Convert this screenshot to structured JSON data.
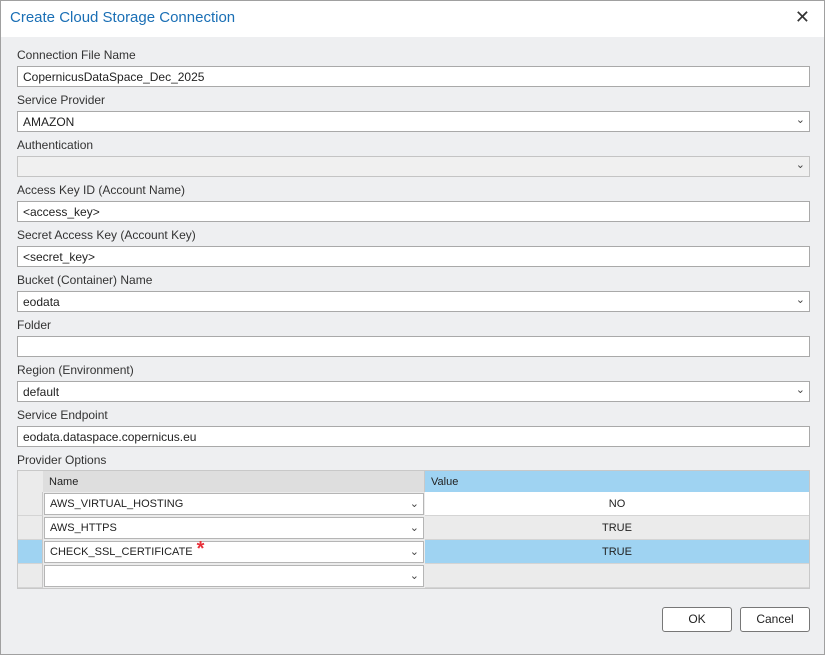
{
  "dialog": {
    "title": "Create Cloud Storage Connection"
  },
  "fields": [
    {
      "label": "Connection File Name",
      "value": "CopernicusDataSpace_Dec_2025",
      "type": "text"
    },
    {
      "label": "Service Provider",
      "value": "AMAZON",
      "type": "select"
    },
    {
      "label": "Authentication",
      "value": "",
      "type": "select",
      "disabled": true
    },
    {
      "label": "Access Key ID (Account Name)",
      "value": "<access_key>",
      "type": "text"
    },
    {
      "label": "Secret Access Key (Account Key)",
      "value": "<secret_key>",
      "type": "text"
    },
    {
      "label": "Bucket (Container) Name",
      "value": "eodata",
      "type": "select"
    },
    {
      "label": "Folder",
      "value": "",
      "type": "text"
    },
    {
      "label": "Region (Environment)",
      "value": "default",
      "type": "select"
    },
    {
      "label": "Service Endpoint",
      "value": "eodata.dataspace.copernicus.eu",
      "type": "text"
    }
  ],
  "provider_options": {
    "label": "Provider Options",
    "columns": [
      "Name",
      "Value"
    ],
    "rows": [
      {
        "name": "AWS_VIRTUAL_HOSTING",
        "value": "NO"
      },
      {
        "name": "AWS_HTTPS",
        "value": "TRUE"
      },
      {
        "name": "CHECK_SSL_CERTIFICATE",
        "value": "TRUE",
        "selected": true,
        "marker": "*"
      },
      {
        "name": "",
        "value": ""
      }
    ]
  },
  "buttons": {
    "ok": "OK",
    "cancel": "Cancel"
  },
  "colors": {
    "accent": "#1a6fb5",
    "selection": "#9fd3f2",
    "marker": "#e8303a"
  }
}
